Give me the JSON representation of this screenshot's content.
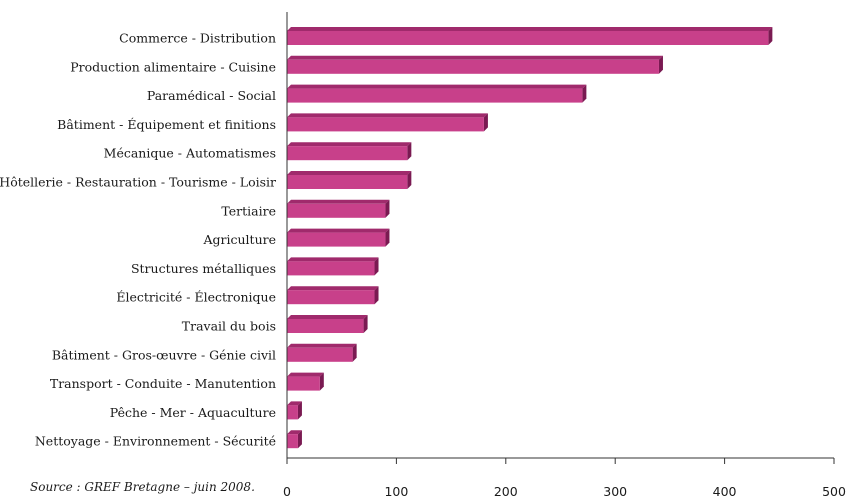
{
  "chart_data": {
    "type": "bar",
    "orientation": "horizontal",
    "categories": [
      "Commerce  - Distribution",
      "Production alimentaire - Cuisine",
      "Paramédical - Social",
      "Bâtiment - Équipement et finitions",
      "Mécanique - Automatismes",
      "Hôtellerie - Restauration - Tourisme - Loisir",
      "Tertiaire",
      "Agriculture",
      "Structures métalliques",
      "Électricité - Électronique",
      "Travail du bois",
      "Bâtiment - Gros-œuvre - Génie civil",
      "Transport - Conduite - Manutention",
      "Pêche - Mer - Aquaculture",
      "Nettoyage - Environnement - Sécurité"
    ],
    "values": [
      440,
      340,
      270,
      180,
      110,
      110,
      90,
      90,
      80,
      80,
      70,
      60,
      30,
      10,
      10
    ],
    "xlim": [
      0,
      500
    ],
    "xticks": [
      "0",
      "100",
      "200",
      "300",
      "400",
      "500"
    ],
    "grid": false,
    "bar_color": "#c8408a",
    "bar_top_color": "#a02a6c",
    "bar_side_color": "#7a1a52"
  },
  "source": "Source : GREF Bretagne – juin 2008."
}
